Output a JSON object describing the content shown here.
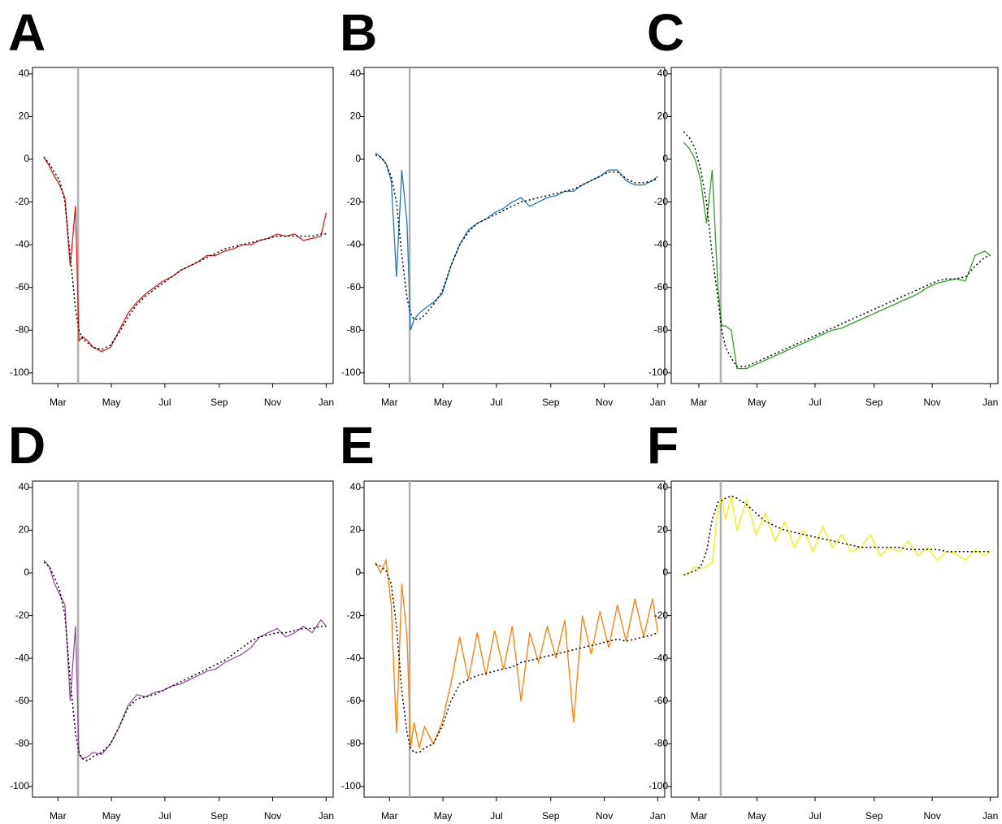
{
  "chart_data": [
    {
      "type": "line",
      "title": "A",
      "x": [
        44,
        50,
        56,
        62,
        68,
        74,
        80,
        84,
        88,
        94,
        100,
        110,
        120,
        130,
        140,
        150,
        160,
        170,
        180,
        190,
        200,
        210,
        220,
        230,
        240,
        250,
        260,
        270,
        280,
        290,
        300,
        310,
        320,
        330,
        340,
        350,
        360,
        366
      ],
      "xlim": [
        31,
        374
      ],
      "xticks": [
        {
          "value": 60,
          "label": "Mar"
        },
        {
          "value": 121,
          "label": "May"
        },
        {
          "value": 182,
          "label": "Jul"
        },
        {
          "value": 244,
          "label": "Sep"
        },
        {
          "value": 305,
          "label": "Nov"
        },
        {
          "value": 366,
          "label": "Jan"
        }
      ],
      "ylim": [
        -105,
        43
      ],
      "yticks": [
        -100,
        -80,
        -60,
        -40,
        -20,
        0,
        20,
        40
      ],
      "vline": 83,
      "series": [
        {
          "color": "#e31a1c",
          "style": "solid",
          "values": [
            1,
            -3,
            -8,
            -12,
            -18,
            -50,
            -22,
            -85,
            -83,
            -85,
            -88,
            -90,
            -88,
            -80,
            -72,
            -67,
            -63,
            -60,
            -57,
            -55,
            -52,
            -50,
            -48,
            -45,
            -45,
            -43,
            -42,
            -40,
            -40,
            -38,
            -37,
            -35,
            -36,
            -35,
            -38,
            -37,
            -36,
            -25
          ]
        },
        {
          "color": "#000000",
          "style": "dotted",
          "values": [
            1,
            -2,
            -6,
            -10,
            -20,
            -45,
            -70,
            -80,
            -84,
            -86,
            -88,
            -89,
            -87,
            -81,
            -74,
            -68,
            -64,
            -61,
            -58,
            -55,
            -52,
            -50,
            -48,
            -46,
            -44,
            -42,
            -41,
            -40,
            -39,
            -38,
            -37,
            -36,
            -36,
            -36,
            -36,
            -36,
            -35,
            -35
          ]
        }
      ]
    },
    {
      "type": "line",
      "title": "B",
      "x": [
        44,
        50,
        56,
        62,
        68,
        74,
        80,
        84,
        88,
        94,
        100,
        110,
        120,
        130,
        140,
        150,
        160,
        170,
        180,
        190,
        200,
        210,
        220,
        230,
        240,
        250,
        260,
        270,
        280,
        290,
        300,
        310,
        320,
        330,
        340,
        350,
        360,
        366
      ],
      "xlim": [
        31,
        374
      ],
      "xticks": [
        {
          "value": 60,
          "label": "Mar"
        },
        {
          "value": 121,
          "label": "May"
        },
        {
          "value": 182,
          "label": "Jul"
        },
        {
          "value": 244,
          "label": "Sep"
        },
        {
          "value": 305,
          "label": "Nov"
        },
        {
          "value": 366,
          "label": "Jan"
        }
      ],
      "ylim": [
        -105,
        43
      ],
      "yticks": [
        -100,
        -80,
        -60,
        -40,
        -20,
        0,
        20,
        40
      ],
      "vline": 83,
      "series": [
        {
          "color": "#1f78b4",
          "style": "solid",
          "values": [
            3,
            1,
            -2,
            -10,
            -55,
            -5,
            -30,
            -80,
            -75,
            -72,
            -70,
            -67,
            -63,
            -50,
            -40,
            -33,
            -30,
            -28,
            -25,
            -23,
            -20,
            -18,
            -22,
            -20,
            -18,
            -17,
            -15,
            -15,
            -12,
            -10,
            -8,
            -5,
            -5,
            -10,
            -12,
            -12,
            -10,
            -8
          ]
        },
        {
          "color": "#000000",
          "style": "dotted",
          "values": [
            2,
            1,
            -2,
            -8,
            -20,
            -45,
            -65,
            -72,
            -75,
            -75,
            -73,
            -68,
            -62,
            -50,
            -40,
            -34,
            -30,
            -28,
            -26,
            -24,
            -22,
            -20,
            -19,
            -18,
            -17,
            -16,
            -15,
            -14,
            -12,
            -10,
            -8,
            -6,
            -6,
            -9,
            -11,
            -11,
            -10,
            -9
          ]
        }
      ]
    },
    {
      "type": "line",
      "title": "C",
      "x": [
        44,
        50,
        56,
        62,
        68,
        74,
        80,
        84,
        88,
        94,
        100,
        110,
        120,
        130,
        140,
        150,
        160,
        170,
        180,
        190,
        200,
        210,
        220,
        230,
        240,
        250,
        260,
        270,
        280,
        290,
        300,
        310,
        320,
        330,
        340,
        350,
        360,
        366
      ],
      "xlim": [
        31,
        374
      ],
      "xticks": [
        {
          "value": 60,
          "label": "Mar"
        },
        {
          "value": 121,
          "label": "May"
        },
        {
          "value": 182,
          "label": "Jul"
        },
        {
          "value": 244,
          "label": "Sep"
        },
        {
          "value": 305,
          "label": "Nov"
        },
        {
          "value": 366,
          "label": "Jan"
        }
      ],
      "ylim": [
        -105,
        43
      ],
      "yticks": [
        -100,
        -80,
        -60,
        -40,
        -20,
        0,
        20,
        40
      ],
      "vline": 83,
      "series": [
        {
          "color": "#33a02c",
          "style": "solid",
          "values": [
            8,
            5,
            0,
            -10,
            -30,
            -5,
            -60,
            -78,
            -78,
            -80,
            -98,
            -98,
            -96,
            -94,
            -92,
            -90,
            -88,
            -86,
            -84,
            -82,
            -80,
            -79,
            -77,
            -75,
            -73,
            -71,
            -69,
            -67,
            -65,
            -63,
            -60,
            -58,
            -57,
            -56,
            -57,
            -45,
            -43,
            -45
          ]
        },
        {
          "color": "#000000",
          "style": "dotted",
          "values": [
            13,
            10,
            5,
            -5,
            -20,
            -45,
            -65,
            -80,
            -88,
            -93,
            -97,
            -97,
            -95,
            -93,
            -91,
            -89,
            -87,
            -85,
            -83,
            -81,
            -79,
            -77,
            -75,
            -73,
            -71,
            -69,
            -67,
            -65,
            -63,
            -61,
            -59,
            -57,
            -56,
            -56,
            -55,
            -50,
            -46,
            -45
          ]
        }
      ]
    },
    {
      "type": "line",
      "title": "D",
      "x": [
        44,
        50,
        56,
        62,
        68,
        74,
        80,
        84,
        88,
        94,
        100,
        110,
        120,
        130,
        140,
        150,
        160,
        170,
        180,
        190,
        200,
        210,
        220,
        230,
        240,
        250,
        260,
        270,
        280,
        290,
        300,
        310,
        320,
        330,
        340,
        350,
        360,
        366
      ],
      "xlim": [
        31,
        374
      ],
      "xticks": [
        {
          "value": 60,
          "label": "Mar"
        },
        {
          "value": 121,
          "label": "May"
        },
        {
          "value": 182,
          "label": "Jul"
        },
        {
          "value": 244,
          "label": "Sep"
        },
        {
          "value": 305,
          "label": "Nov"
        },
        {
          "value": 366,
          "label": "Jan"
        }
      ],
      "ylim": [
        -105,
        43
      ],
      "yticks": [
        -100,
        -80,
        -60,
        -40,
        -20,
        0,
        20,
        40
      ],
      "vline": 83,
      "series": [
        {
          "color": "#984ea3",
          "style": "solid",
          "values": [
            6,
            3,
            -5,
            -10,
            -15,
            -60,
            -25,
            -85,
            -87,
            -86,
            -84,
            -85,
            -80,
            -72,
            -62,
            -57,
            -58,
            -56,
            -55,
            -53,
            -52,
            -50,
            -48,
            -46,
            -45,
            -42,
            -40,
            -38,
            -35,
            -30,
            -28,
            -26,
            -30,
            -28,
            -25,
            -28,
            -22,
            -25
          ]
        },
        {
          "color": "#000000",
          "style": "dotted",
          "values": [
            5,
            3,
            -2,
            -8,
            -20,
            -50,
            -75,
            -84,
            -87,
            -88,
            -86,
            -84,
            -80,
            -72,
            -63,
            -59,
            -58,
            -57,
            -55,
            -53,
            -51,
            -49,
            -47,
            -45,
            -43,
            -41,
            -38,
            -35,
            -32,
            -30,
            -29,
            -28,
            -28,
            -27,
            -26,
            -26,
            -25,
            -25
          ]
        }
      ]
    },
    {
      "type": "line",
      "title": "E",
      "x": [
        44,
        50,
        56,
        62,
        68,
        74,
        80,
        84,
        88,
        94,
        100,
        110,
        120,
        130,
        140,
        150,
        160,
        170,
        180,
        190,
        200,
        210,
        220,
        230,
        240,
        250,
        260,
        270,
        280,
        290,
        300,
        310,
        320,
        330,
        340,
        350,
        360,
        366
      ],
      "xlim": [
        31,
        374
      ],
      "xticks": [
        {
          "value": 60,
          "label": "Mar"
        },
        {
          "value": 121,
          "label": "May"
        },
        {
          "value": 182,
          "label": "Jul"
        },
        {
          "value": 244,
          "label": "Sep"
        },
        {
          "value": 305,
          "label": "Nov"
        },
        {
          "value": 366,
          "label": "Jan"
        }
      ],
      "ylim": [
        -105,
        43
      ],
      "yticks": [
        -100,
        -80,
        -60,
        -40,
        -20,
        0,
        20,
        40
      ],
      "vline": 83,
      "series": [
        {
          "color": "#ff7f00",
          "style": "solid",
          "values": [
            5,
            0,
            6,
            -15,
            -75,
            -5,
            -30,
            -82,
            -70,
            -82,
            -72,
            -80,
            -70,
            -52,
            -30,
            -50,
            -28,
            -48,
            -27,
            -45,
            -25,
            -60,
            -28,
            -42,
            -25,
            -40,
            -22,
            -70,
            -20,
            -38,
            -18,
            -35,
            -15,
            -32,
            -12,
            -30,
            -12,
            -28
          ]
        },
        {
          "color": "#000000",
          "style": "dotted",
          "values": [
            4,
            3,
            1,
            -5,
            -25,
            -55,
            -75,
            -82,
            -84,
            -84,
            -82,
            -80,
            -72,
            -60,
            -52,
            -50,
            -48,
            -47,
            -46,
            -45,
            -44,
            -42,
            -41,
            -40,
            -39,
            -38,
            -37,
            -36,
            -35,
            -34,
            -33,
            -32,
            -31,
            -32,
            -31,
            -30,
            -29,
            -28
          ]
        }
      ]
    },
    {
      "type": "line",
      "title": "F",
      "x": [
        44,
        50,
        56,
        62,
        68,
        74,
        80,
        84,
        88,
        94,
        100,
        110,
        120,
        130,
        140,
        150,
        160,
        170,
        180,
        190,
        200,
        210,
        220,
        230,
        240,
        250,
        260,
        270,
        280,
        290,
        300,
        310,
        320,
        330,
        340,
        350,
        360,
        366
      ],
      "xlim": [
        31,
        374
      ],
      "xticks": [
        {
          "value": 60,
          "label": "Mar"
        },
        {
          "value": 121,
          "label": "May"
        },
        {
          "value": 182,
          "label": "Jul"
        },
        {
          "value": 244,
          "label": "Sep"
        },
        {
          "value": 305,
          "label": "Nov"
        },
        {
          "value": 366,
          "label": "Jan"
        }
      ],
      "ylim": [
        -105,
        43
      ],
      "yticks": [
        -100,
        -80,
        -60,
        -40,
        -20,
        0,
        20,
        40
      ],
      "vline": 83,
      "series": [
        {
          "color": "#f2f200",
          "style": "solid",
          "values": [
            -1,
            0,
            3,
            2,
            3,
            5,
            30,
            35,
            25,
            36,
            20,
            34,
            18,
            28,
            15,
            24,
            12,
            20,
            10,
            22,
            12,
            18,
            10,
            12,
            18,
            8,
            12,
            10,
            15,
            8,
            12,
            6,
            10,
            9,
            6,
            11,
            8,
            10
          ]
        },
        {
          "color": "#000000",
          "style": "dotted",
          "values": [
            -1,
            0,
            1,
            3,
            10,
            25,
            33,
            34,
            35,
            36,
            35,
            32,
            28,
            24,
            22,
            20,
            19,
            18,
            17,
            16,
            15,
            14,
            13,
            12,
            12,
            12,
            12,
            12,
            11,
            11,
            11,
            11,
            10,
            10,
            10,
            10,
            10,
            10
          ]
        }
      ]
    }
  ]
}
